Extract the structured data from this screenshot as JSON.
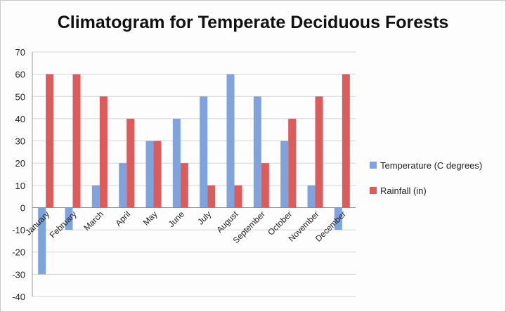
{
  "chart_data": {
    "type": "bar",
    "title": "Climatogram for Temperate Deciduous Forests",
    "xlabel": "",
    "ylabel": "",
    "ylim": [
      -40,
      70
    ],
    "yticks": [
      70,
      60,
      50,
      40,
      30,
      20,
      10,
      0,
      -10,
      -20,
      -30,
      -40
    ],
    "grid": true,
    "legend_position": "right",
    "categories": [
      "January",
      "February",
      "March",
      "April",
      "May",
      "June",
      "July",
      "August",
      "September",
      "October",
      "November",
      "December"
    ],
    "series": [
      {
        "name": "Temperature (C degrees)",
        "color": "#7fa3dc",
        "values": [
          -30,
          -10,
          10,
          20,
          30,
          40,
          50,
          60,
          50,
          30,
          10,
          -10
        ]
      },
      {
        "name": "Rainfall (in)",
        "color": "#dc5c5c",
        "values": [
          60,
          60,
          50,
          40,
          30,
          20,
          10,
          10,
          20,
          40,
          50,
          60
        ]
      }
    ]
  }
}
